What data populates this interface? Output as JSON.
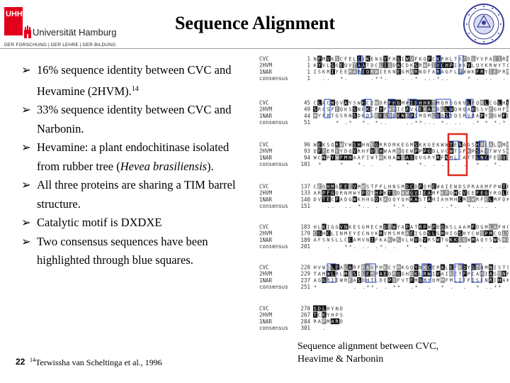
{
  "header": {
    "logo_mark": "UHH",
    "university": "Universität Hamburg",
    "tagline": "DER FORSCHUNG | DER LEHRE | DER BILDUNG",
    "title": "Sequence Alignment"
  },
  "bullets": [
    {
      "parts": [
        "16% sequence identity between CVC and Hevamine (2HVM)."
      ],
      "ref": "14"
    },
    {
      "parts": [
        "33% sequence identity between CVC and Narbonin."
      ]
    },
    {
      "parts": [
        "Hevamine: a plant endochitinase isolated from rubber tree ("
      ],
      "italic": "Hevea brasiliensis",
      "tail": ")."
    },
    {
      "parts": [
        "All three proteins are sharing a TIM barrel structure."
      ]
    },
    {
      "parts": [
        "Catalytic motif is DXDXE"
      ]
    },
    {
      "parts": [
        "Two consensus sequences have been highlighted through blue squares."
      ]
    }
  ],
  "alignment": {
    "blocks": [
      {
        "rows": [
          {
            "label": "CVC",
            "num": "1"
          },
          {
            "label": "2HVM",
            "num": "1"
          },
          {
            "label": "1NAR",
            "num": "1"
          },
          {
            "label": "consensus",
            "num": "1"
          }
        ]
      },
      {
        "rows": [
          {
            "label": "CVC",
            "num": "45"
          },
          {
            "label": "2HVM",
            "num": "49"
          },
          {
            "label": "1NAR",
            "num": "44"
          },
          {
            "label": "consensus",
            "num": "51"
          }
        ]
      },
      {
        "rows": [
          {
            "label": "CVC",
            "num": "96"
          },
          {
            "label": "2HVM",
            "num": "93"
          },
          {
            "label": "1NAR",
            "num": "94"
          },
          {
            "label": "consensus",
            "num": "101"
          }
        ]
      },
      {
        "rows": [
          {
            "label": "CVC",
            "num": "137"
          },
          {
            "label": "2HVM",
            "num": "133"
          },
          {
            "label": "1NAR",
            "num": "140"
          },
          {
            "label": "consensus",
            "num": "151"
          }
        ]
      },
      {
        "rows": [
          {
            "label": "CVC",
            "num": "183"
          },
          {
            "label": "2HVM",
            "num": "179"
          },
          {
            "label": "1NAR",
            "num": "189"
          },
          {
            "label": "consensus",
            "num": "201"
          }
        ]
      },
      {
        "rows": [
          {
            "label": "CVC",
            "num": "228"
          },
          {
            "label": "2HVM",
            "num": "229"
          },
          {
            "label": "1NAR",
            "num": "237"
          },
          {
            "label": "consensus",
            "num": "251"
          }
        ]
      },
      {
        "rows": [
          {
            "label": "CVC",
            "num": "270"
          },
          {
            "label": "2HVM",
            "num": "267"
          },
          {
            "label": "1NAR",
            "num": "284"
          },
          {
            "label": "consensus",
            "num": "301"
          }
        ]
      }
    ],
    "highlight_color": "#e0281f",
    "motif_color": "#1f3fbf"
  },
  "caption": "Sequence alignment between CVC, Heavime & Narbonin",
  "footer": {
    "page": "22",
    "ref_mark": "14",
    "reference": "Terwissha van Scheltinga et al., 1996"
  }
}
